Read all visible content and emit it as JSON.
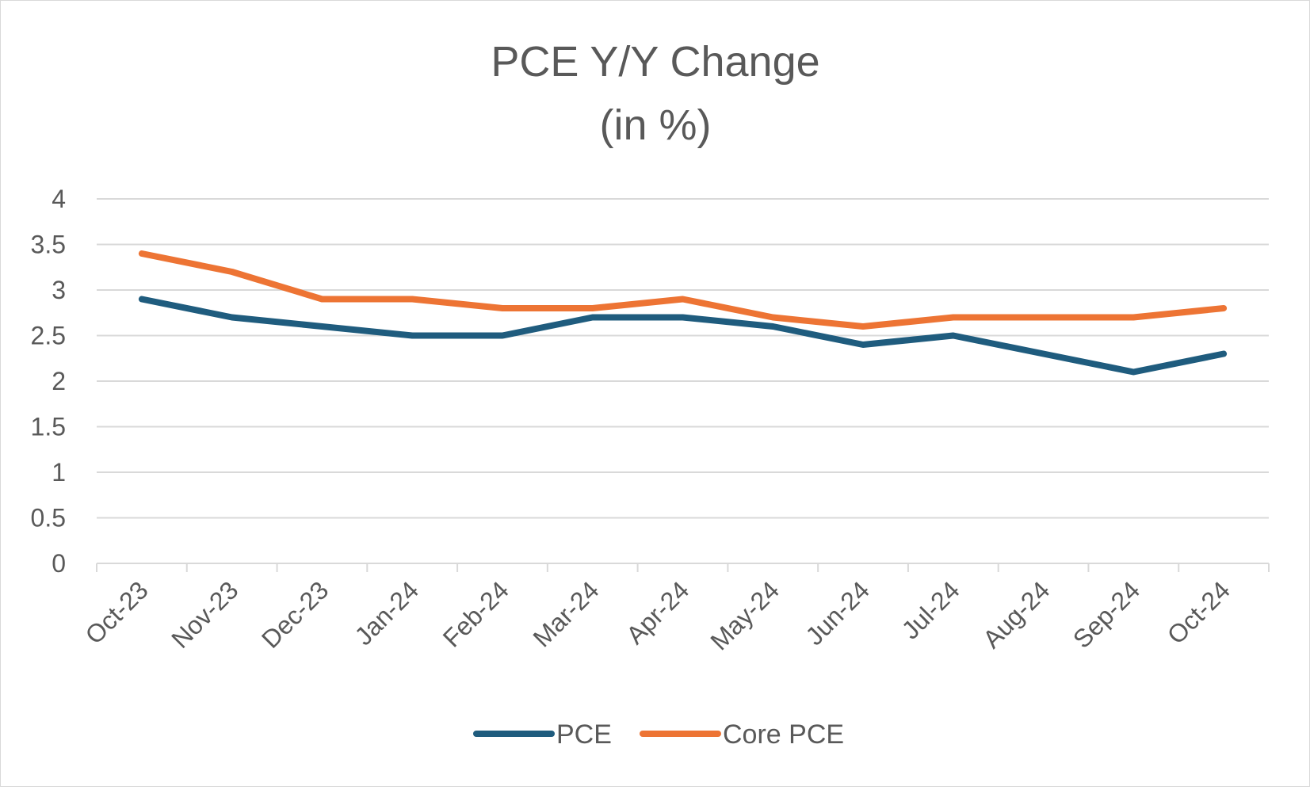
{
  "chart_data": {
    "type": "line",
    "title": "PCE Y/Y Change",
    "subtitle": "(in %)",
    "xlabel": "",
    "ylabel": "",
    "categories": [
      "Oct-23",
      "Nov-23",
      "Dec-23",
      "Jan-24",
      "Feb-24",
      "Mar-24",
      "Apr-24",
      "May-24",
      "Jun-24",
      "Jul-24",
      "Aug-24",
      "Sep-24",
      "Oct-24"
    ],
    "series": [
      {
        "name": "PCE",
        "color": "#1f5c7e",
        "values": [
          2.9,
          2.7,
          2.6,
          2.5,
          2.5,
          2.7,
          2.7,
          2.6,
          2.4,
          2.5,
          2.3,
          2.1,
          2.3
        ]
      },
      {
        "name": "Core PCE",
        "color": "#ed7434",
        "values": [
          3.4,
          3.2,
          2.9,
          2.9,
          2.8,
          2.8,
          2.9,
          2.7,
          2.6,
          2.7,
          2.7,
          2.7,
          2.8
        ]
      }
    ],
    "yticks": [
      "0",
      "0.5",
      "1",
      "1.5",
      "2",
      "2.5",
      "3",
      "3.5",
      "4"
    ],
    "ylim": [
      0,
      4
    ],
    "grid": true,
    "legend": "bottom"
  }
}
